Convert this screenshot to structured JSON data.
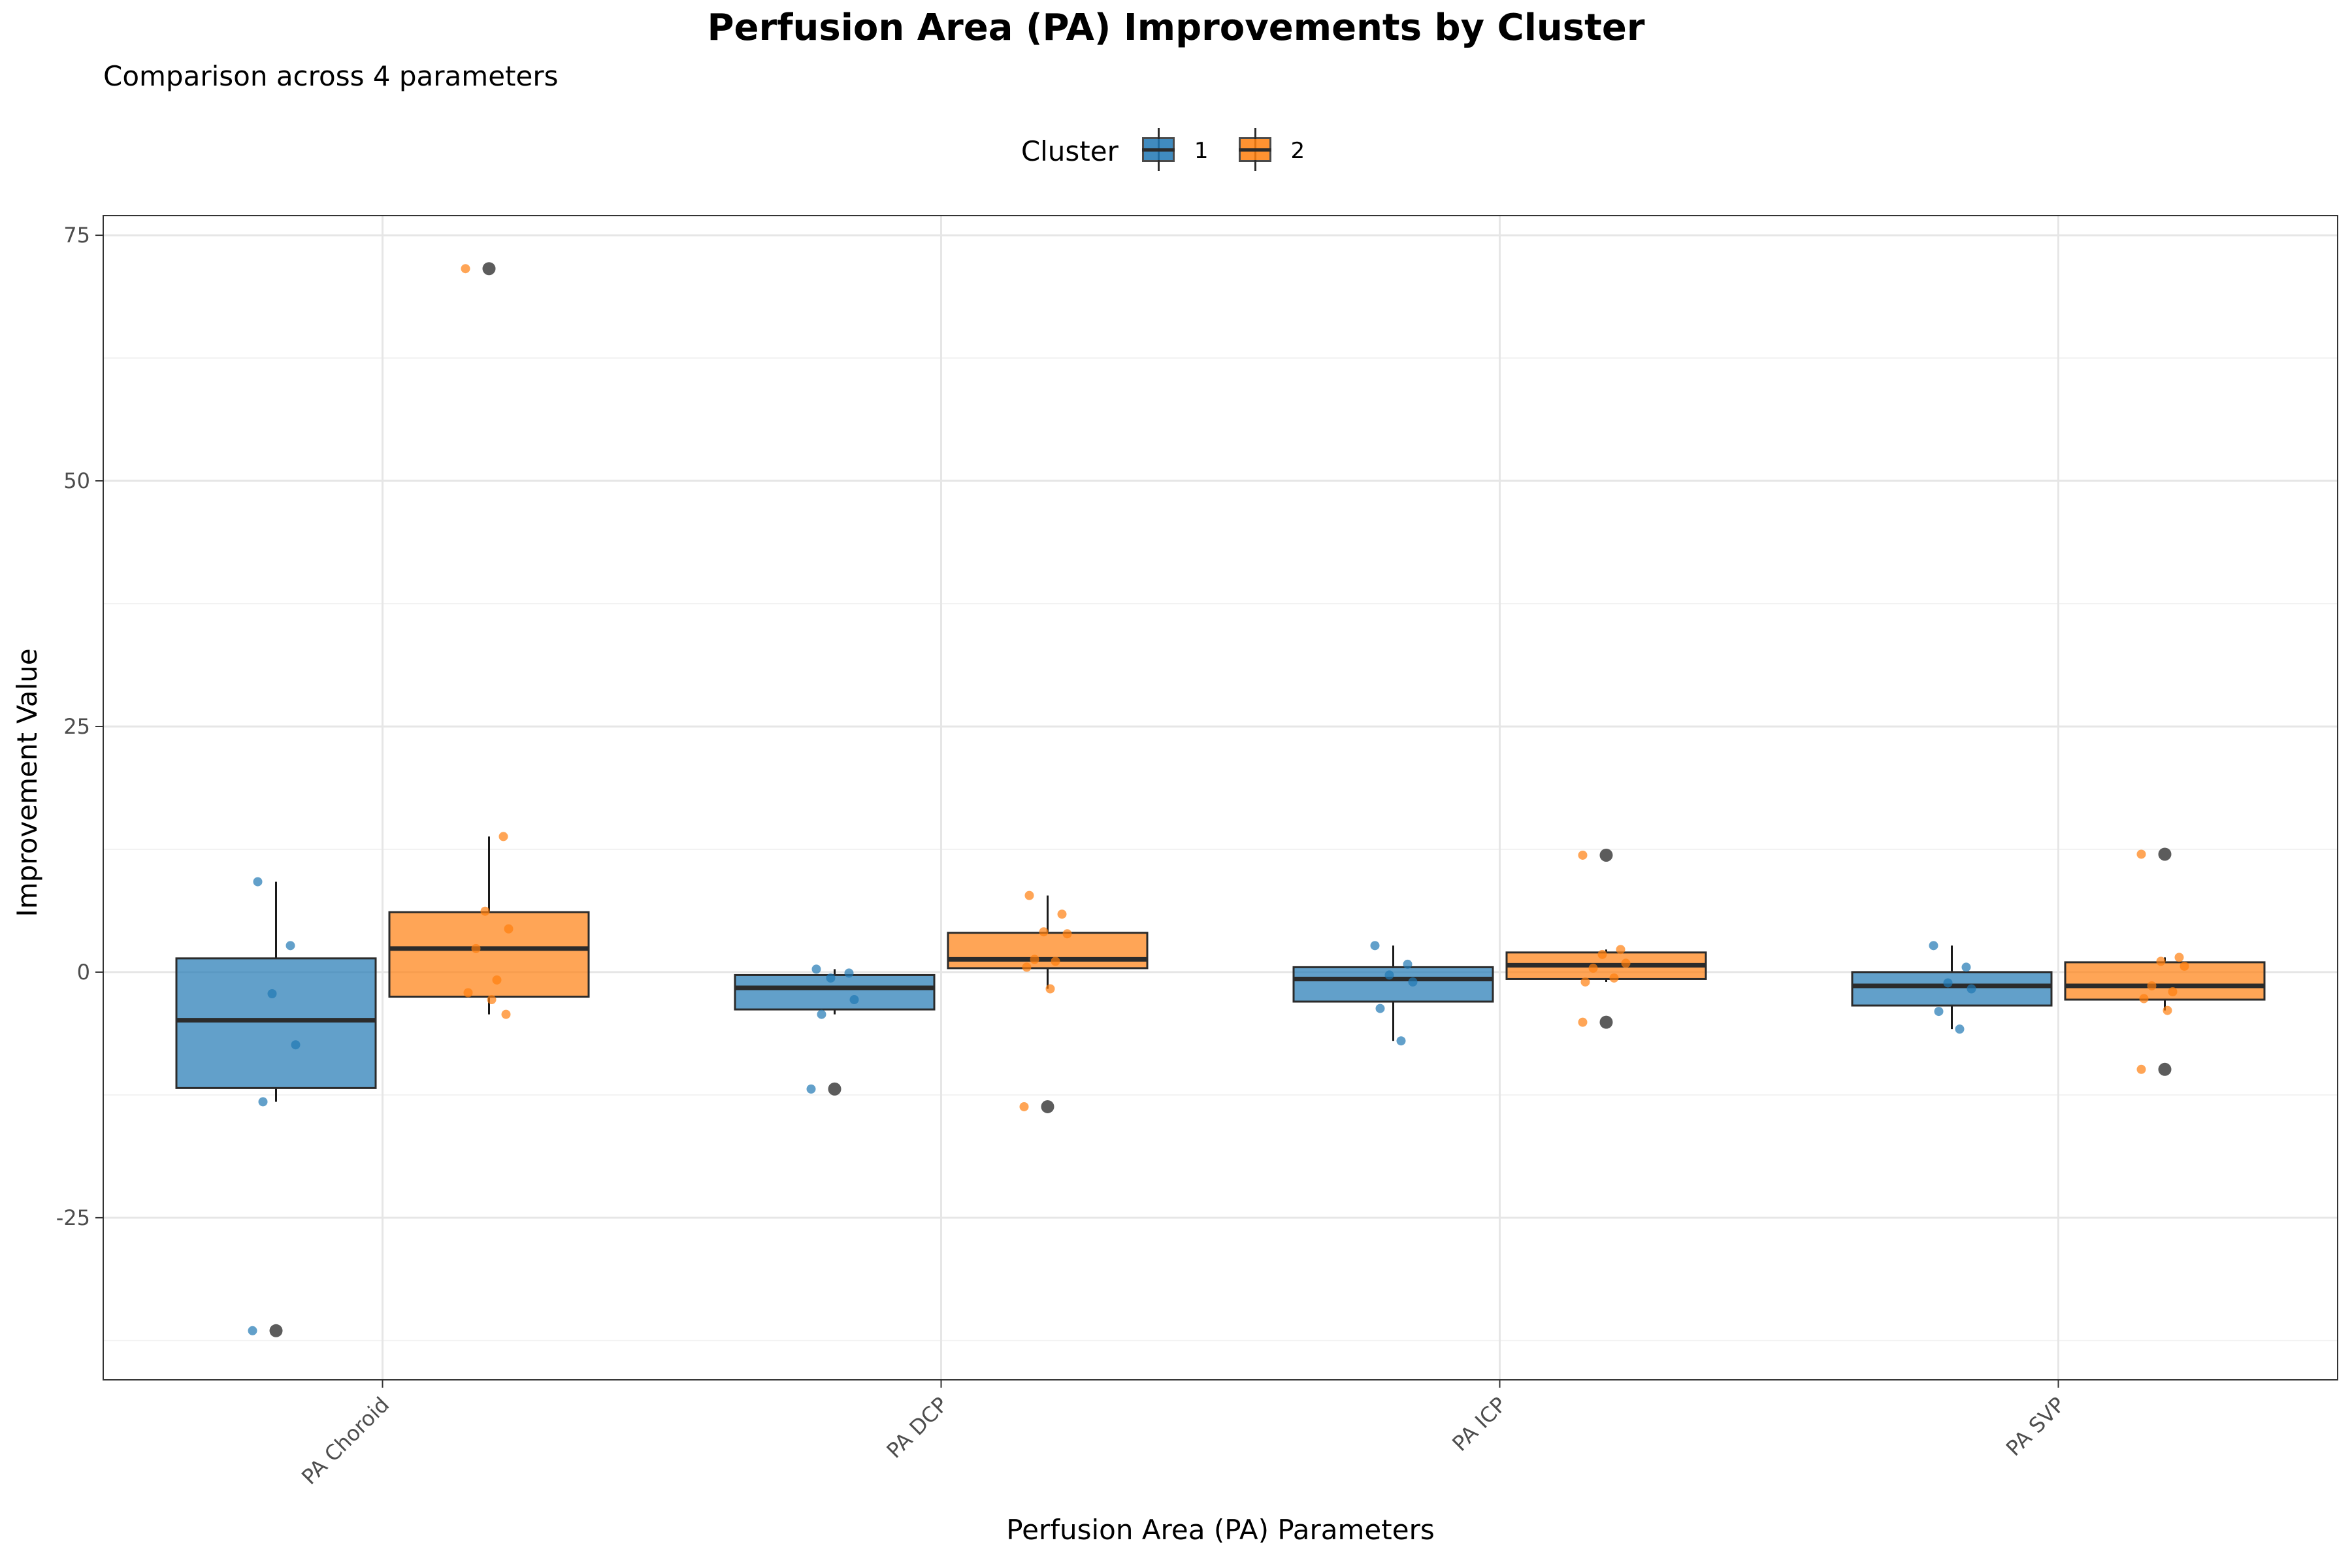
{
  "chart_data": {
    "type": "box",
    "title": "Perfusion Area (PA) Improvements by Cluster",
    "subtitle": "Comparison across 4 parameters",
    "xlabel": "Perfusion Area (PA) Parameters",
    "ylabel": "Improvement Value",
    "categories": [
      "PA Choroid",
      "PA DCP",
      "PA ICP",
      "PA SVP"
    ],
    "ylim": [
      -41.5,
      77
    ],
    "yticks": [
      -25,
      0,
      25,
      50,
      75
    ],
    "grid": true,
    "legend": {
      "title": "Cluster",
      "position": "top",
      "entries": [
        {
          "label": "1",
          "color": "#1f77b4"
        },
        {
          "label": "2",
          "color": "#ff7f0e"
        }
      ]
    },
    "series": [
      {
        "cluster": "1",
        "color": "#1f77b4",
        "boxes": [
          {
            "category": "PA Choroid",
            "q1": -11.8,
            "median": -4.9,
            "q3": 1.4,
            "whisker_low": -13.2,
            "whisker_high": 9.2,
            "outliers": [
              -36.5
            ],
            "points": [
              9.2,
              2.7,
              -2.2,
              -7.4,
              -13.2,
              -36.5
            ]
          },
          {
            "category": "PA DCP",
            "q1": -3.8,
            "median": -1.6,
            "q3": -0.3,
            "whisker_low": -4.3,
            "whisker_high": 0.3,
            "outliers": [
              -11.9
            ],
            "points": [
              0.3,
              -0.1,
              -0.6,
              -2.8,
              -4.3,
              -11.9
            ]
          },
          {
            "category": "PA ICP",
            "q1": -3.0,
            "median": -0.7,
            "q3": 0.5,
            "whisker_low": -7.0,
            "whisker_high": 2.7,
            "outliers": [],
            "points": [
              2.7,
              0.8,
              -0.3,
              -1.0,
              -3.7,
              -7.0
            ]
          },
          {
            "category": "PA SVP",
            "q1": -3.4,
            "median": -1.4,
            "q3": 0.0,
            "whisker_low": -5.8,
            "whisker_high": 2.7,
            "outliers": [],
            "points": [
              2.7,
              0.5,
              -1.1,
              -1.7,
              -4.0,
              -5.8
            ]
          }
        ]
      },
      {
        "cluster": "2",
        "color": "#ff7f0e",
        "boxes": [
          {
            "category": "PA Choroid",
            "q1": -2.5,
            "median": 2.4,
            "q3": 6.1,
            "whisker_low": -4.3,
            "whisker_high": 13.8,
            "outliers": [
              71.6
            ],
            "points": [
              71.6,
              13.8,
              6.2,
              4.4,
              2.4,
              -0.8,
              -2.1,
              -2.8,
              -4.3
            ]
          },
          {
            "category": "PA DCP",
            "q1": 0.4,
            "median": 1.3,
            "q3": 4.0,
            "whisker_low": -1.7,
            "whisker_high": 7.8,
            "outliers": [
              -13.7
            ],
            "points": [
              7.8,
              5.9,
              4.1,
              3.9,
              1.3,
              1.1,
              0.5,
              -1.7,
              -13.7
            ]
          },
          {
            "category": "PA ICP",
            "q1": -0.7,
            "median": 0.7,
            "q3": 2.0,
            "whisker_low": -1.0,
            "whisker_high": 2.3,
            "outliers": [
              11.9,
              -5.1
            ],
            "points": [
              11.9,
              2.3,
              1.8,
              0.9,
              0.4,
              -0.6,
              -1.0,
              -5.1
            ]
          },
          {
            "category": "PA SVP",
            "q1": -2.8,
            "median": -1.4,
            "q3": 1.0,
            "whisker_low": -3.9,
            "whisker_high": 1.5,
            "outliers": [
              12.0,
              -9.9
            ],
            "points": [
              12.0,
              1.5,
              1.1,
              0.6,
              -1.4,
              -2.0,
              -2.7,
              -3.9,
              -9.9
            ]
          }
        ]
      }
    ]
  }
}
